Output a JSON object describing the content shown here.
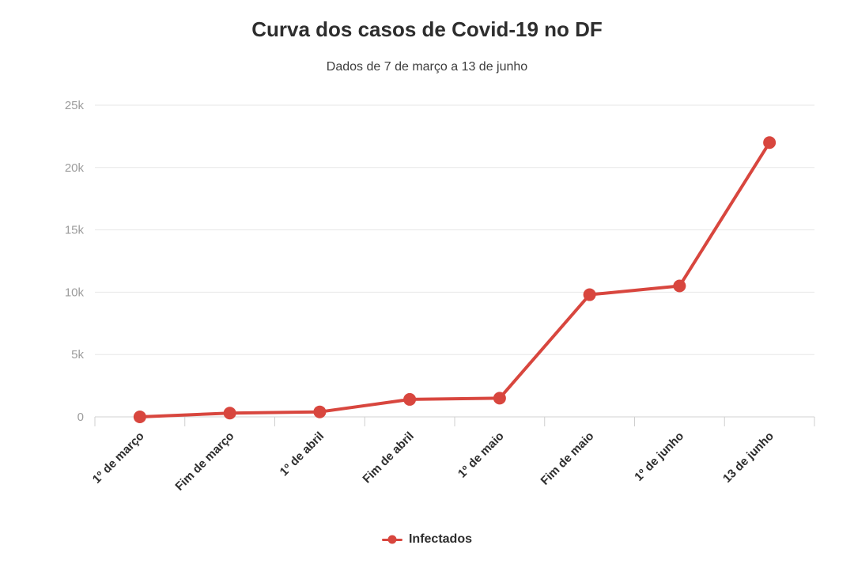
{
  "header": {
    "title": "Curva dos casos de Covid-19 no DF",
    "subtitle": "Dados de 7 de março a 13 de junho"
  },
  "legend": {
    "items": [
      {
        "label": "Infectados",
        "marker": "line-dot-icon",
        "color": "#d8463e"
      }
    ],
    "position": "bottom-center"
  },
  "colors": {
    "accent": "#d8463e",
    "gridline": "#e7e7e7",
    "axis_baseline": "#d2d2d2",
    "y_tick_text": "#9c9c9c",
    "x_tick_text": "#2d2d2d",
    "title_text": "#2d2d2d",
    "background": "#ffffff"
  },
  "chart_data": {
    "type": "line",
    "title": "Curva dos casos de Covid-19 no DF",
    "subtitle": "Dados de 7 de março a 13 de junho",
    "xlabel": "",
    "ylabel": "",
    "categories": [
      "1º de março",
      "Fim de março",
      "1º de abril",
      "Fim de abril",
      "1º de maio",
      "Fim de maio",
      "1º de junho",
      "13 de junho"
    ],
    "series": [
      {
        "name": "Infectados",
        "color": "#d8463e",
        "values": [
          0,
          300,
          400,
          1400,
          1500,
          9800,
          10500,
          22000
        ]
      }
    ],
    "ylim": [
      0,
      25000
    ],
    "yticks": [
      0,
      5000,
      10000,
      15000,
      20000,
      25000
    ],
    "ytick_labels": [
      "0",
      "5k",
      "10k",
      "15k",
      "20k",
      "25k"
    ],
    "x_tick_rotation_deg": -45,
    "grid": true,
    "marker_radius_px": 8,
    "legend_position": "bottom"
  }
}
